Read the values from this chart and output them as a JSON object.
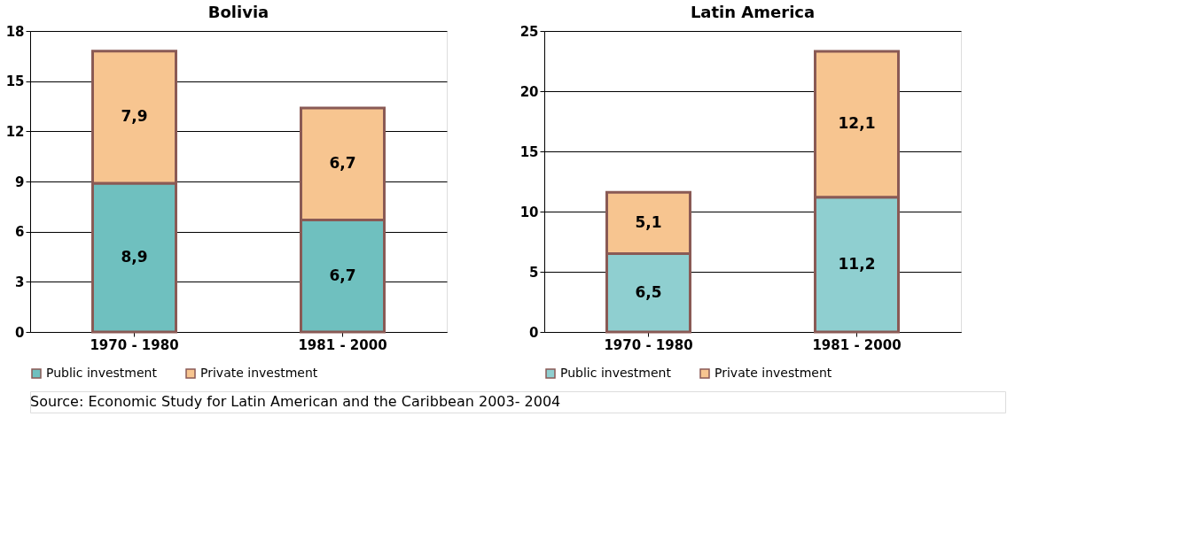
{
  "chart_data": [
    {
      "type": "bar",
      "title": "Bolivia",
      "categories": [
        "1970 - 1980",
        "1981 - 2000"
      ],
      "stacked": true,
      "ylim": [
        0,
        18
      ],
      "yticks": [
        0,
        3,
        6,
        9,
        12,
        15,
        18
      ],
      "grid": "y",
      "legend": "bottom",
      "series": [
        {
          "name": "Public investment",
          "color": "#6fc0bf",
          "values": [
            8.9,
            6.7
          ],
          "value_labels": [
            "8,9",
            "6,7"
          ]
        },
        {
          "name": "Private investment",
          "color": "#f7c590",
          "values": [
            7.9,
            6.7
          ],
          "value_labels": [
            "7,9",
            "6,7"
          ]
        }
      ],
      "annotations": [
        "Source: Economic Study for  Latin American and the Caribbean 2003- 2004"
      ]
    },
    {
      "type": "bar",
      "title": "Latin America",
      "categories": [
        "1970 - 1980",
        "1981 - 2000"
      ],
      "stacked": true,
      "ylim": [
        0,
        25
      ],
      "yticks": [
        0,
        5,
        10,
        15,
        20,
        25
      ],
      "grid": "y",
      "legend": "bottom",
      "series": [
        {
          "name": "Public investment",
          "color": "#8fcfd0",
          "values": [
            6.5,
            11.2
          ],
          "value_labels": [
            "6,5",
            "11,2"
          ]
        },
        {
          "name": "Private  investment",
          "color": "#f7c590",
          "values": [
            5.1,
            12.1
          ],
          "value_labels": [
            "5,1",
            "12,1"
          ]
        }
      ]
    }
  ]
}
